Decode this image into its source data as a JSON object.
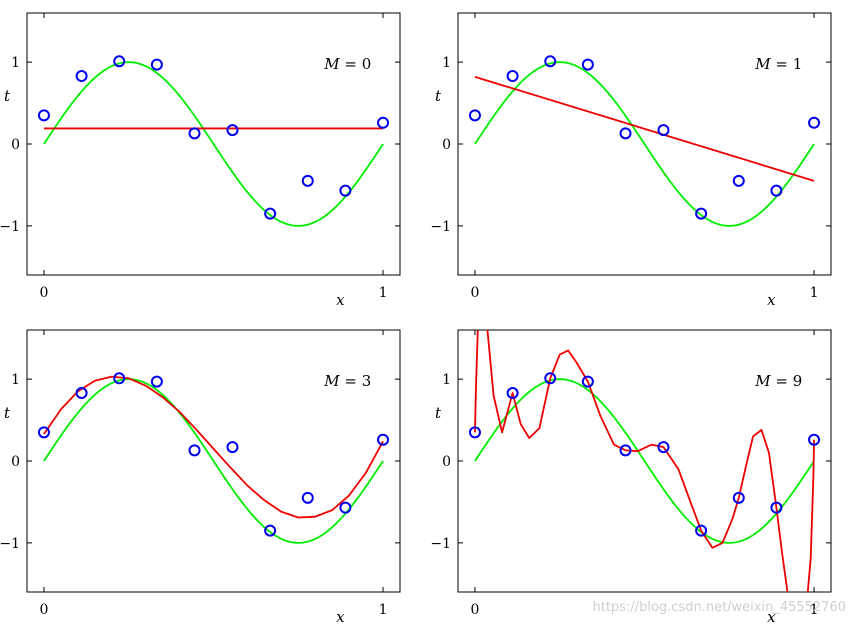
{
  "chart_data": [
    {
      "type": "line",
      "annotation": "M = 0",
      "xlabel": "x",
      "ylabel": "t",
      "xlim": [
        -0.05,
        1.05
      ],
      "ylim": [
        -1.6,
        1.6
      ],
      "xticks": [
        "0",
        "1"
      ],
      "yticks": [
        "−1",
        "0",
        "1"
      ],
      "points": {
        "x": [
          0,
          0.111,
          0.222,
          0.333,
          0.444,
          0.556,
          0.667,
          0.778,
          0.889,
          1.0
        ],
        "y": [
          0.35,
          0.83,
          1.01,
          0.97,
          0.13,
          0.17,
          -0.85,
          -0.45,
          -0.57,
          0.26
        ],
        "color": "#0000ee"
      },
      "true_curve": {
        "function": "sin(2*pi*x)",
        "color": "#00ee00"
      },
      "fit_curve": {
        "color": "#ee0000",
        "x": [
          0,
          1
        ],
        "y": [
          0.19,
          0.19
        ]
      }
    },
    {
      "type": "line",
      "annotation": "M = 1",
      "xlabel": "x",
      "ylabel": "t",
      "xlim": [
        -0.05,
        1.05
      ],
      "ylim": [
        -1.6,
        1.6
      ],
      "xticks": [
        "0",
        "1"
      ],
      "yticks": [
        "−1",
        "0",
        "1"
      ],
      "points": {
        "x": [
          0,
          0.111,
          0.222,
          0.333,
          0.444,
          0.556,
          0.667,
          0.778,
          0.889,
          1.0
        ],
        "y": [
          0.35,
          0.83,
          1.01,
          0.97,
          0.13,
          0.17,
          -0.85,
          -0.45,
          -0.57,
          0.26
        ],
        "color": "#0000ee"
      },
      "true_curve": {
        "function": "sin(2*pi*x)",
        "color": "#00ee00"
      },
      "fit_curve": {
        "color": "#ee0000",
        "x": [
          0,
          1
        ],
        "y": [
          0.82,
          -0.45
        ]
      }
    },
    {
      "type": "line",
      "annotation": "M = 3",
      "xlabel": "x",
      "ylabel": "t",
      "xlim": [
        -0.05,
        1.05
      ],
      "ylim": [
        -1.6,
        1.6
      ],
      "xticks": [
        "0",
        "1"
      ],
      "yticks": [
        "−1",
        "0",
        "1"
      ],
      "points": {
        "x": [
          0,
          0.111,
          0.222,
          0.333,
          0.444,
          0.556,
          0.667,
          0.778,
          0.889,
          1.0
        ],
        "y": [
          0.35,
          0.83,
          1.01,
          0.97,
          0.13,
          0.17,
          -0.85,
          -0.45,
          -0.57,
          0.26
        ],
        "color": "#0000ee"
      },
      "true_curve": {
        "function": "sin(2*pi*x)",
        "color": "#00ee00"
      },
      "fit_curve": {
        "color": "#ee0000",
        "x": [
          0,
          0.05,
          0.1,
          0.15,
          0.2,
          0.25,
          0.3,
          0.35,
          0.4,
          0.45,
          0.5,
          0.55,
          0.6,
          0.65,
          0.7,
          0.75,
          0.8,
          0.85,
          0.9,
          0.95,
          1.0
        ],
        "y": [
          0.33,
          0.63,
          0.85,
          0.98,
          1.03,
          1.01,
          0.92,
          0.78,
          0.6,
          0.38,
          0.15,
          -0.08,
          -0.3,
          -0.48,
          -0.62,
          -0.69,
          -0.68,
          -0.6,
          -0.42,
          -0.14,
          0.24
        ]
      }
    },
    {
      "type": "line",
      "annotation": "M = 9",
      "xlabel": "x",
      "ylabel": "t",
      "xlim": [
        -0.05,
        1.05
      ],
      "ylim": [
        -1.6,
        1.6
      ],
      "xticks": [
        "0",
        "1"
      ],
      "yticks": [
        "−1",
        "0",
        "1"
      ],
      "points": {
        "x": [
          0,
          0.111,
          0.222,
          0.333,
          0.444,
          0.556,
          0.667,
          0.778,
          0.889,
          1.0
        ],
        "y": [
          0.35,
          0.83,
          1.01,
          0.97,
          0.13,
          0.17,
          -0.85,
          -0.45,
          -0.57,
          0.26
        ],
        "color": "#0000ee"
      },
      "true_curve": {
        "function": "sin(2*pi*x)",
        "color": "#00ee00"
      },
      "fit_curve": {
        "color": "#ee0000",
        "x": [
          0,
          0.003,
          0.01,
          0.03,
          0.055,
          0.08,
          0.111,
          0.135,
          0.16,
          0.19,
          0.222,
          0.25,
          0.275,
          0.3,
          0.333,
          0.37,
          0.41,
          0.444,
          0.48,
          0.52,
          0.556,
          0.6,
          0.64,
          0.667,
          0.7,
          0.73,
          0.76,
          0.778,
          0.8,
          0.82,
          0.845,
          0.867,
          0.889,
          0.905,
          0.925,
          0.95,
          0.975,
          0.99,
          0.998,
          1.0
        ],
        "y": [
          0.35,
          0.9,
          1.8,
          1.9,
          0.8,
          0.35,
          0.83,
          0.45,
          0.28,
          0.4,
          1.01,
          1.3,
          1.35,
          1.2,
          0.97,
          0.55,
          0.2,
          0.13,
          0.12,
          0.2,
          0.17,
          -0.1,
          -0.55,
          -0.85,
          -1.06,
          -1.0,
          -0.7,
          -0.45,
          -0.05,
          0.3,
          0.38,
          0.1,
          -0.57,
          -1.1,
          -1.7,
          -2.0,
          -1.9,
          -1.2,
          -0.2,
          0.26
        ]
      }
    }
  ],
  "watermark": "https://blog.csdn.net/weixin_45552760"
}
